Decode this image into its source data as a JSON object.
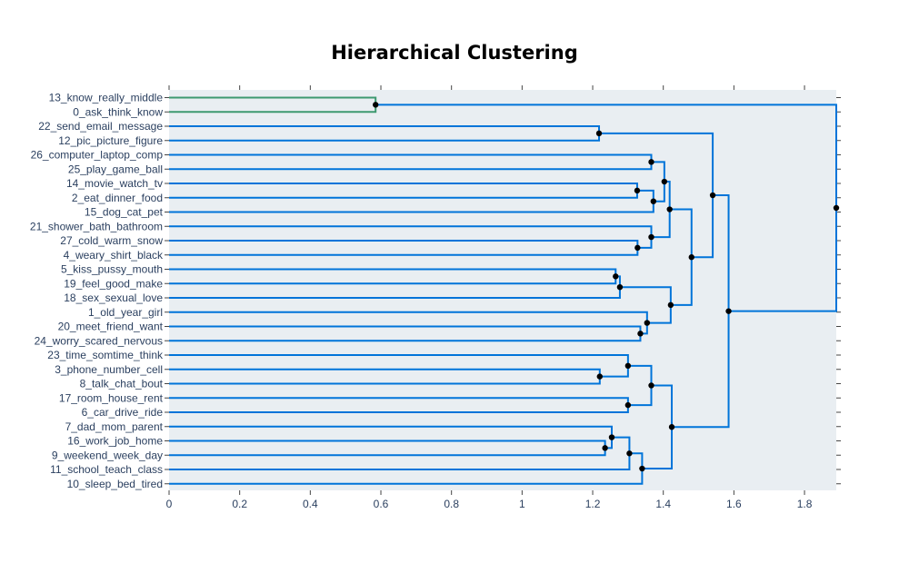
{
  "chart_data": {
    "type": "dendrogram",
    "title": "Hierarchical Clustering",
    "xlim": [
      0,
      1.89
    ],
    "x_ticks": [
      "0",
      "0.2",
      "0.4",
      "0.6",
      "0.8",
      "1",
      "1.2",
      "1.4",
      "1.6",
      "1.8"
    ],
    "x_tick_values": [
      0,
      0.2,
      0.4,
      0.6,
      0.8,
      1.0,
      1.2,
      1.4,
      1.6,
      1.8
    ],
    "leaves": [
      "13_know_really_middle",
      "0_ask_think_know",
      "22_send_email_message",
      "12_pic_picture_figure",
      "26_computer_laptop_comp",
      "25_play_game_ball",
      "14_movie_watch_tv",
      "2_eat_dinner_food",
      "15_dog_cat_pet",
      "21_shower_bath_bathroom",
      "27_cold_warm_snow",
      "4_weary_shirt_black",
      "5_kiss_pussy_mouth",
      "19_feel_good_make",
      "18_sex_sexual_love",
      "1_old_year_girl",
      "20_meet_friend_want",
      "24_worry_scared_nervous",
      "23_time_somtime_think",
      "3_phone_number_cell",
      "8_talk_chat_bout",
      "17_room_house_rent",
      "6_car_drive_ride",
      "7_dad_mom_parent",
      "16_work_job_home",
      "9_weekend_week_day",
      "11_school_teach_class",
      "10_sleep_bed_tired"
    ],
    "merges": [
      {
        "a": "L0",
        "b": "L1",
        "h": 0.585,
        "color": "#3d9970"
      },
      {
        "a": "L2",
        "b": "L3",
        "h": 1.218,
        "color": "#0074d9"
      },
      {
        "a": "L4",
        "b": "L5",
        "h": 1.366,
        "color": "#0074d9"
      },
      {
        "a": "L6",
        "b": "L7",
        "h": 1.326,
        "color": "#0074d9"
      },
      {
        "a": "M3",
        "b": "L8",
        "h": 1.372,
        "color": "#0074d9"
      },
      {
        "a": "M2",
        "b": "M4",
        "h": 1.403,
        "color": "#0074d9"
      },
      {
        "a": "L10",
        "b": "L11",
        "h": 1.327,
        "color": "#0074d9"
      },
      {
        "a": "L9",
        "b": "M6",
        "h": 1.366,
        "color": "#0074d9"
      },
      {
        "a": "M5",
        "b": "M7",
        "h": 1.418,
        "color": "#0074d9"
      },
      {
        "a": "L12",
        "b": "L13",
        "h": 1.265,
        "color": "#0074d9"
      },
      {
        "a": "M9",
        "b": "L14",
        "h": 1.277,
        "color": "#0074d9"
      },
      {
        "a": "L16",
        "b": "L17",
        "h": 1.335,
        "color": "#0074d9"
      },
      {
        "a": "L15",
        "b": "M11",
        "h": 1.354,
        "color": "#0074d9"
      },
      {
        "a": "M10",
        "b": "M12",
        "h": 1.421,
        "color": "#0074d9"
      },
      {
        "a": "M8",
        "b": "M13",
        "h": 1.48,
        "color": "#0074d9"
      },
      {
        "a": "M1",
        "b": "M14",
        "h": 1.54,
        "color": "#0074d9"
      },
      {
        "a": "L19",
        "b": "L20",
        "h": 1.22,
        "color": "#0074d9"
      },
      {
        "a": "L18",
        "b": "M16",
        "h": 1.3,
        "color": "#0074d9"
      },
      {
        "a": "L21",
        "b": "L22",
        "h": 1.3,
        "color": "#0074d9"
      },
      {
        "a": "M17",
        "b": "M18",
        "h": 1.366,
        "color": "#0074d9"
      },
      {
        "a": "L24",
        "b": "L25",
        "h": 1.235,
        "color": "#0074d9"
      },
      {
        "a": "L23",
        "b": "M20",
        "h": 1.254,
        "color": "#0074d9"
      },
      {
        "a": "M21",
        "b": "L26",
        "h": 1.304,
        "color": "#0074d9"
      },
      {
        "a": "M22",
        "b": "L27",
        "h": 1.34,
        "color": "#0074d9"
      },
      {
        "a": "M19",
        "b": "M23",
        "h": 1.424,
        "color": "#0074d9"
      },
      {
        "a": "M15",
        "b": "M24",
        "h": 1.585,
        "color": "#0074d9"
      },
      {
        "a": "M0",
        "b": "M25",
        "h": 1.89,
        "color": "#0074d9"
      }
    ],
    "colors": {
      "plot_background": "#e9eef2",
      "branch_blue": "#0074d9",
      "branch_green": "#3d9970",
      "node_dot": "#000000"
    },
    "grid": false,
    "legend": "none"
  }
}
